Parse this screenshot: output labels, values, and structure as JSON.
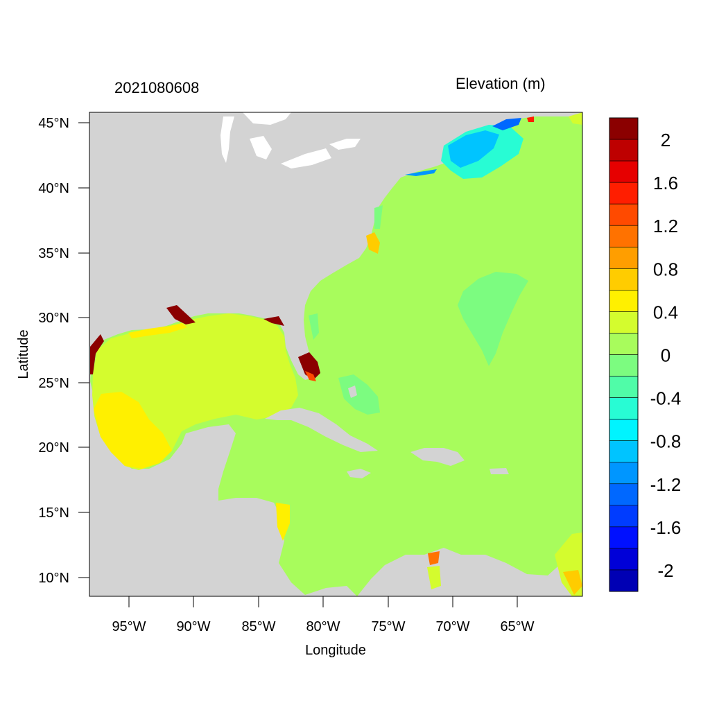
{
  "header": {
    "date_label": "2021080608",
    "variable_title": "Elevation (m)"
  },
  "axes": {
    "xlabel": "Longitude",
    "ylabel": "Latitude",
    "x_ticks": [
      "95°W",
      "90°W",
      "85°W",
      "80°W",
      "75°W",
      "70°W",
      "65°W"
    ],
    "y_ticks": [
      "45°N",
      "40°N",
      "35°N",
      "30°N",
      "25°N",
      "20°N",
      "15°N",
      "10°N"
    ]
  },
  "map": {
    "lon_range": [
      -98,
      -60
    ],
    "lat_range": [
      8.5,
      46
    ],
    "colors": {
      "land": "#d3d3d3",
      "ocean_background": "#a8fc5c",
      "gulf": "#d4fc2e"
    }
  },
  "colorbar": {
    "labels": [
      "2",
      "1.6",
      "1.2",
      "0.8",
      "0.4",
      "0",
      "-0.4",
      "-0.8",
      "-1.2",
      "-1.6",
      "-2"
    ],
    "colors": [
      "#8b0000",
      "#be0000",
      "#e60000",
      "#ff1e00",
      "#ff4a00",
      "#ff7200",
      "#ff9e00",
      "#ffcc00",
      "#fff000",
      "#d4fc2e",
      "#a8fc5c",
      "#7cfc80",
      "#50fca8",
      "#28fcd4",
      "#00f4ff",
      "#00c4ff",
      "#0096ff",
      "#0068ff",
      "#003cff",
      "#0010ff",
      "#0000d8",
      "#0000b4"
    ]
  }
}
